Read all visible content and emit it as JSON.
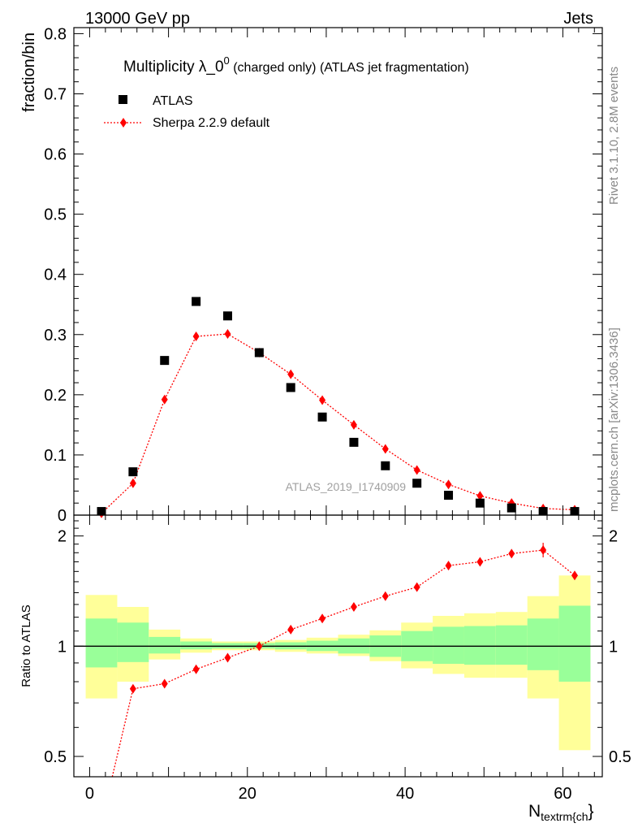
{
  "header": {
    "left": "13000 GeV pp",
    "right": "Jets",
    "side_top": "Rivet 3.1.10,  2.8M events",
    "side_bottom": "mcplots.cern.ch [arXiv:1306.3436]"
  },
  "chart_data": [
    {
      "type": "scatter",
      "title": "Multiplicity λ_0",
      "title_sup": "0",
      "subtitle": " (charged only) (ATLAS jet fragmentation)",
      "ylabel": "fraction/bin",
      "xlabel_main": "N",
      "xlabel_sub": "textrm{ch",
      "xlabel_tail": "}",
      "watermark": "ATLAS_2019_I1740909",
      "xlim": [
        -2,
        65
      ],
      "ylim": [
        0,
        0.81
      ],
      "x_ticks": [
        0,
        20,
        40,
        60
      ],
      "y_ticks": [
        0,
        0.1,
        0.2,
        0.3,
        0.4,
        0.5,
        0.6,
        0.7,
        0.8
      ],
      "y_tick_labels": [
        "0",
        "0.1",
        "0.2",
        "0.3",
        "0.4",
        "0.5",
        "0.6",
        "0.7",
        "0.8"
      ],
      "legend_position": "top-left",
      "colors": {
        "atlas": "#000000",
        "sherpa": "#ff0000"
      },
      "series": [
        {
          "name": "ATLAS",
          "x": [
            1.5,
            5.5,
            9.5,
            13.5,
            17.5,
            21.5,
            25.5,
            29.5,
            33.5,
            37.5,
            41.5,
            45.5,
            49.5,
            53.5,
            57.5,
            61.5
          ],
          "values": [
            0.006,
            0.072,
            0.257,
            0.355,
            0.331,
            0.27,
            0.212,
            0.163,
            0.121,
            0.082,
            0.053,
            0.033,
            0.02,
            0.012,
            0.006,
            0.006
          ]
        },
        {
          "name": "Sherpa 2.2.9 default",
          "x": [
            1.5,
            5.5,
            9.5,
            13.5,
            17.5,
            21.5,
            25.5,
            29.5,
            33.5,
            37.5,
            41.5,
            45.5,
            49.5,
            53.5,
            57.5,
            61.5
          ],
          "values": [
            0.003,
            0.053,
            0.192,
            0.297,
            0.301,
            0.27,
            0.234,
            0.191,
            0.15,
            0.11,
            0.075,
            0.051,
            0.032,
            0.02,
            0.011,
            0.009
          ]
        }
      ]
    },
    {
      "type": "line",
      "ylabel": "Ratio to ATLAS",
      "xlim": [
        -2,
        65
      ],
      "ylim": [
        0.44,
        2.28
      ],
      "y_ticks": [
        0.5,
        1,
        2
      ],
      "y_tick_labels": [
        "0.5",
        "1",
        "2"
      ],
      "x_ticks": [
        0,
        20,
        40,
        60
      ],
      "x_tick_labels": [
        "0",
        "20",
        "40",
        "60"
      ],
      "colors": {
        "stat_band": "#99ff99",
        "total_band": "#ffff99",
        "reference": "#000000",
        "sherpa": "#ff0000"
      },
      "bins": {
        "edges": [
          -0.5,
          3.5,
          7.5,
          11.5,
          15.5,
          19.5,
          23.5,
          27.5,
          31.5,
          35.5,
          39.5,
          43.5,
          47.5,
          51.5,
          55.5,
          59.5,
          63.5
        ],
        "total_low": [
          0.72,
          0.8,
          0.92,
          0.96,
          0.975,
          0.975,
          0.965,
          0.955,
          0.94,
          0.91,
          0.87,
          0.84,
          0.82,
          0.82,
          0.72,
          0.52
        ],
        "total_high": [
          1.38,
          1.28,
          1.11,
          1.05,
          1.03,
          1.03,
          1.04,
          1.055,
          1.075,
          1.105,
          1.16,
          1.21,
          1.23,
          1.24,
          1.37,
          1.56
        ],
        "stat_low": [
          0.875,
          0.905,
          0.955,
          0.98,
          0.985,
          0.985,
          0.98,
          0.97,
          0.955,
          0.935,
          0.91,
          0.895,
          0.89,
          0.89,
          0.86,
          0.8
        ],
        "stat_high": [
          1.19,
          1.16,
          1.06,
          1.03,
          1.02,
          1.02,
          1.025,
          1.035,
          1.05,
          1.07,
          1.1,
          1.13,
          1.135,
          1.14,
          1.19,
          1.29
        ]
      },
      "series": [
        {
          "name": "Sherpa 2.2.9 default",
          "x": [
            1.5,
            5.5,
            9.5,
            13.5,
            17.5,
            21.5,
            25.5,
            29.5,
            33.5,
            37.5,
            41.5,
            45.5,
            49.5,
            53.5,
            57.5,
            61.5
          ],
          "values": [
            0.33,
            0.765,
            0.79,
            0.865,
            0.93,
            1.0,
            1.11,
            1.19,
            1.28,
            1.37,
            1.45,
            1.66,
            1.7,
            1.79,
            1.83,
            1.56
          ]
        }
      ]
    }
  ]
}
